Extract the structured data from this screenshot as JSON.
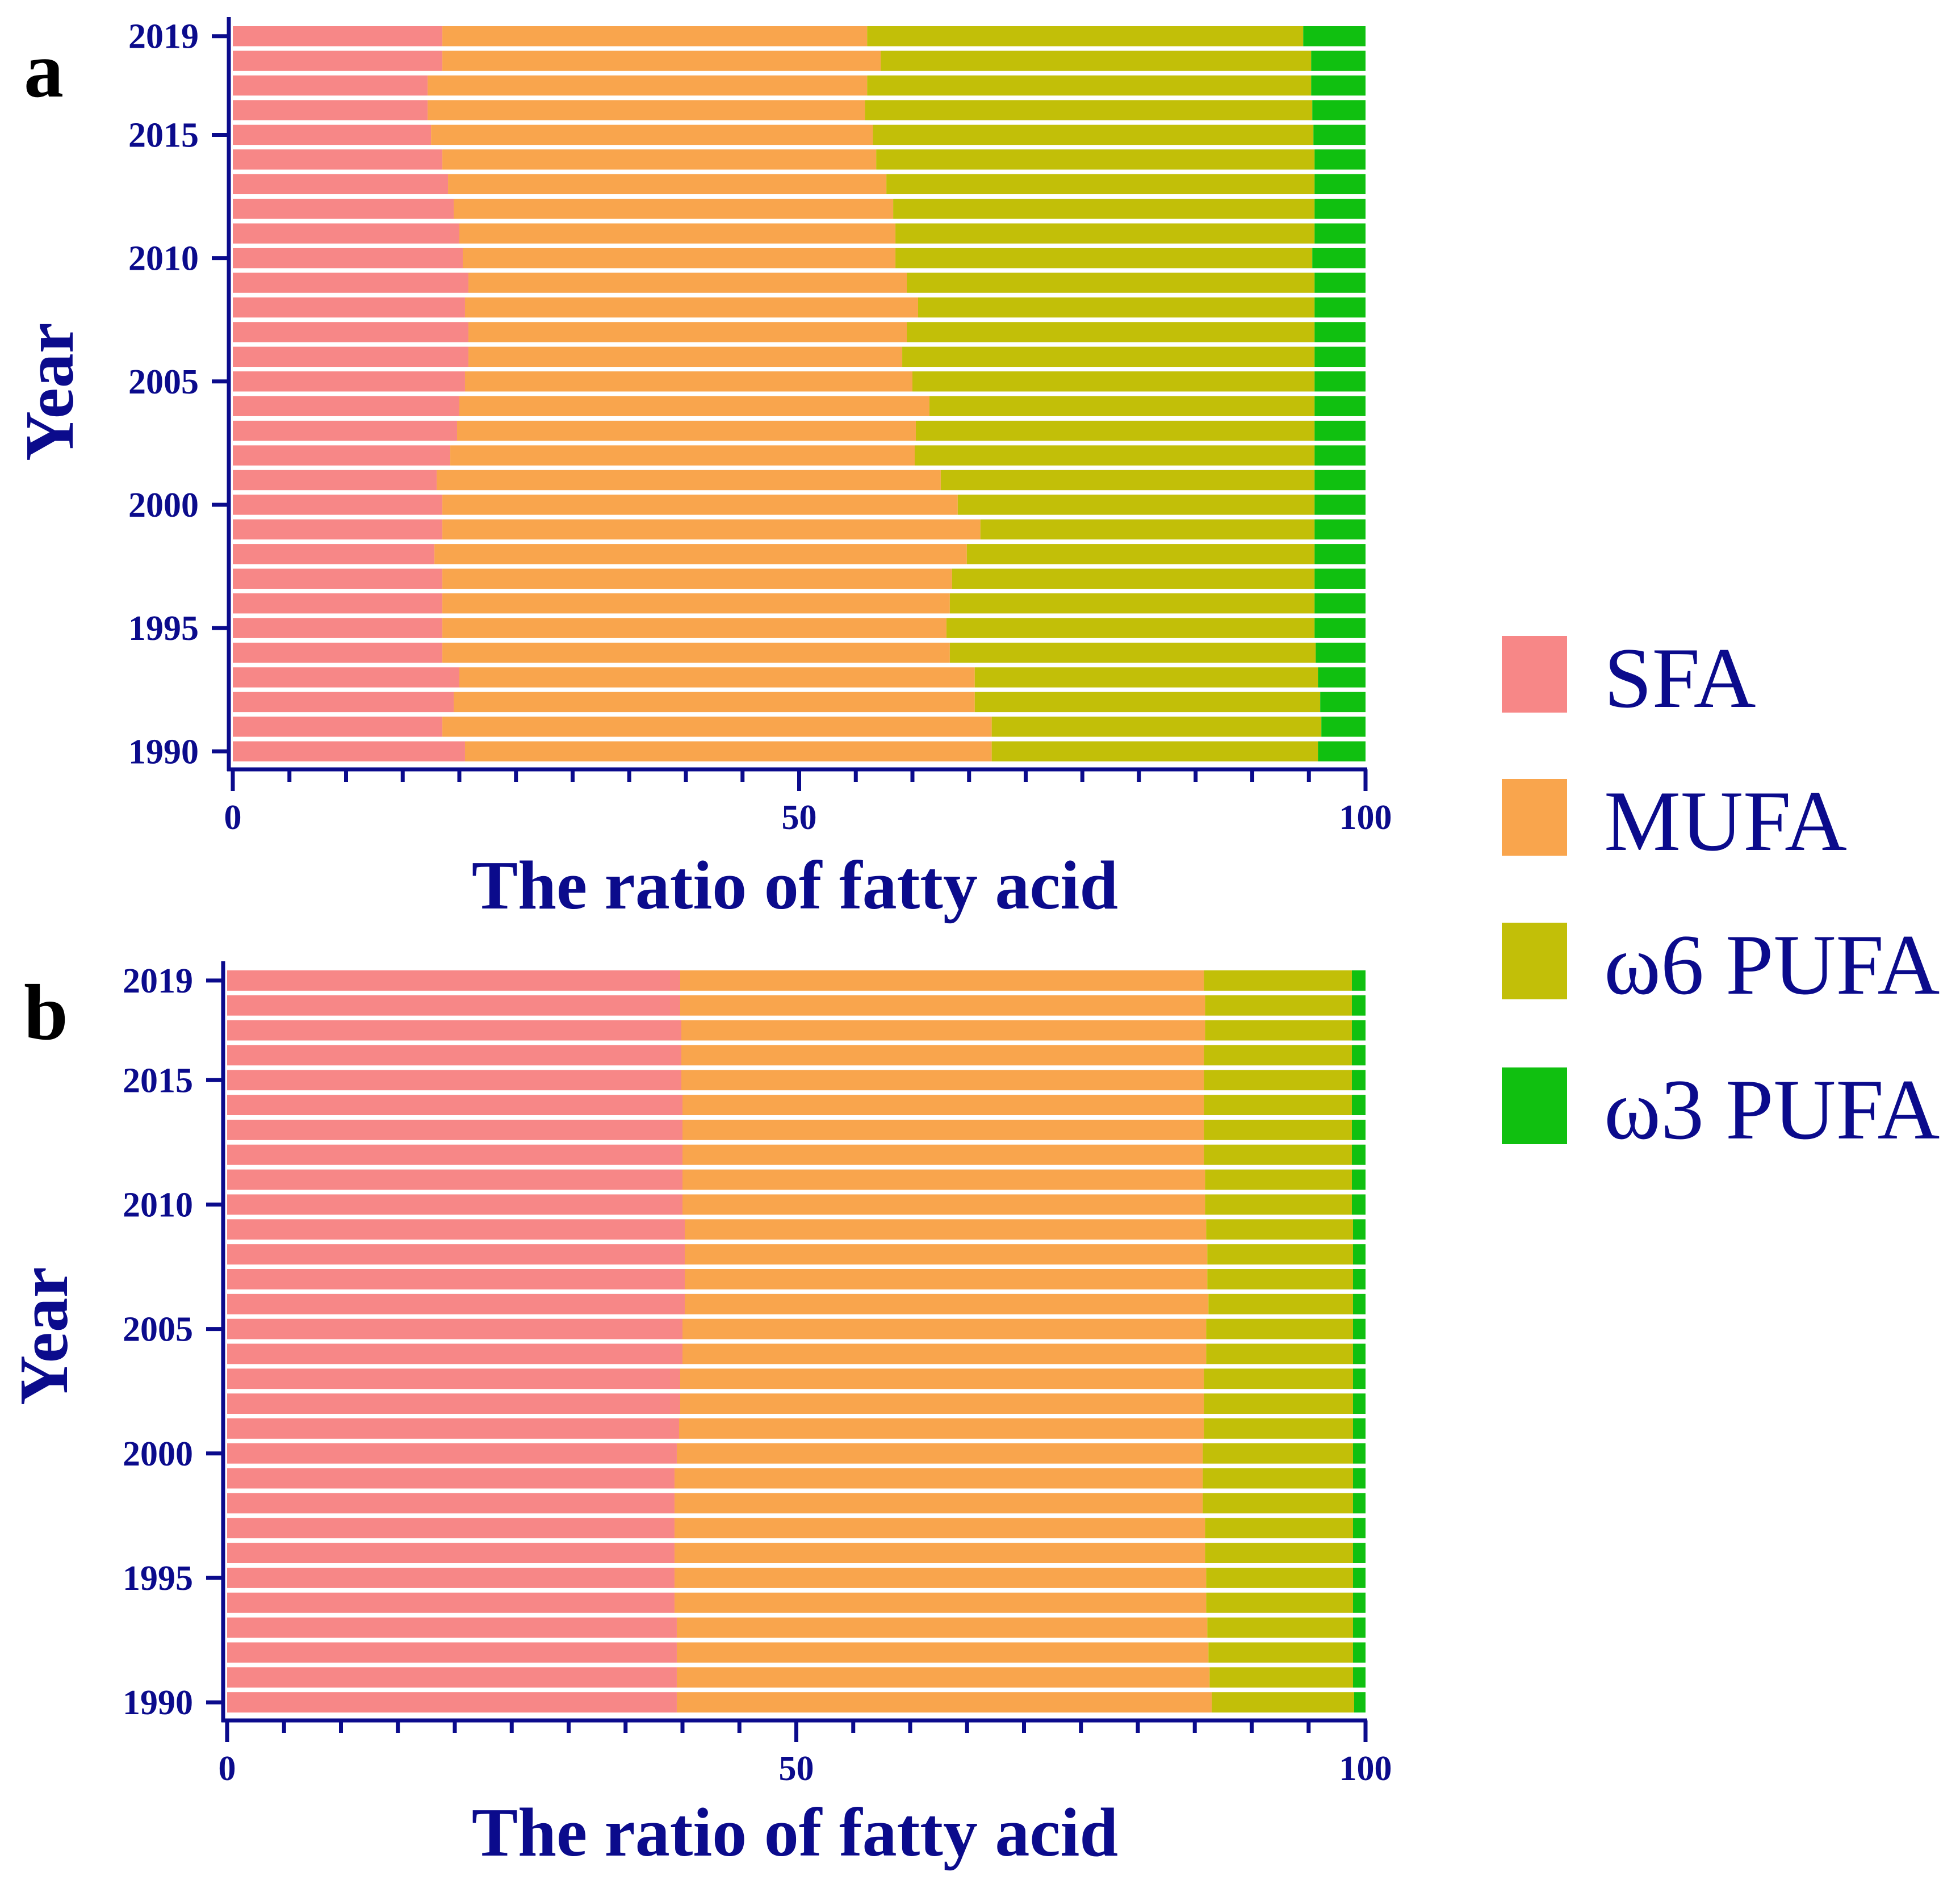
{
  "legend": {
    "items": [
      {
        "label": "SFA",
        "color": "#f78787"
      },
      {
        "label": "MUFA",
        "color": "#f9a54d"
      },
      {
        "label": "ω6 PUFA",
        "color": "#c2bf08"
      },
      {
        "label": "ω3 PUFA",
        "color": "#10c010"
      }
    ]
  },
  "chart_data": [
    {
      "panel": "a",
      "type": "bar",
      "orientation": "horizontal",
      "stacked": true,
      "xlabel": "The ratio of fatty acid",
      "ylabel": "Year",
      "xlim": [
        0,
        100
      ],
      "x_ticks": [
        "0",
        "50",
        "100"
      ],
      "y_ticks": [
        "1990",
        "1995",
        "2000",
        "2005",
        "2010",
        "2015",
        "2019"
      ],
      "categories": [
        1990,
        1991,
        1992,
        1993,
        1994,
        1995,
        1996,
        1997,
        1998,
        1999,
        2000,
        2001,
        2002,
        2003,
        2004,
        2005,
        2006,
        2007,
        2008,
        2009,
        2010,
        2011,
        2012,
        2013,
        2014,
        2015,
        2016,
        2017,
        2018,
        2019
      ],
      "series": [
        {
          "name": "SFA",
          "values": [
            20.5,
            18.5,
            19.5,
            20.0,
            18.5,
            18.5,
            18.5,
            18.5,
            17.8,
            18.5,
            18.5,
            18.0,
            19.2,
            19.8,
            20.0,
            20.5,
            20.8,
            20.8,
            20.5,
            20.8,
            20.3,
            20.0,
            19.5,
            19.0,
            18.5,
            17.5,
            17.2,
            17.2,
            18.5,
            18.5
          ],
          "color": "#f78787"
        },
        {
          "name": "MUFA",
          "values": [
            46.5,
            48.5,
            46.0,
            45.5,
            44.8,
            44.5,
            44.8,
            45.0,
            47.0,
            47.5,
            45.5,
            44.5,
            41.0,
            40.5,
            41.5,
            39.5,
            38.3,
            38.7,
            40.0,
            38.7,
            38.2,
            38.5,
            38.8,
            38.7,
            38.3,
            39.0,
            38.6,
            38.8,
            38.7,
            37.5
          ],
          "color": "#f9a54d"
        },
        {
          "name": "ω6 PUFA",
          "values": [
            28.8,
            29.1,
            30.5,
            30.3,
            32.3,
            32.5,
            32.2,
            32.0,
            30.7,
            29.5,
            31.5,
            33.0,
            35.3,
            35.2,
            34.0,
            35.5,
            36.4,
            36.0,
            35.0,
            36.0,
            36.8,
            37.0,
            37.2,
            37.8,
            38.7,
            38.9,
            39.5,
            39.2,
            38.0,
            38.5
          ],
          "color": "#c2bf08"
        },
        {
          "name": "ω3 PUFA",
          "values": [
            4.2,
            3.9,
            4.0,
            4.2,
            4.4,
            4.5,
            4.5,
            4.5,
            4.5,
            4.5,
            4.5,
            4.5,
            4.5,
            4.5,
            4.5,
            4.5,
            4.5,
            4.5,
            4.5,
            4.5,
            4.7,
            4.5,
            4.5,
            4.5,
            4.5,
            4.6,
            4.7,
            4.8,
            4.8,
            5.5
          ],
          "color": "#10c010"
        }
      ]
    },
    {
      "panel": "b",
      "type": "bar",
      "orientation": "horizontal",
      "stacked": true,
      "xlabel": "The ratio of fatty acid",
      "ylabel": "Year",
      "xlim": [
        0,
        100
      ],
      "x_ticks": [
        "0",
        "50",
        "100"
      ],
      "y_ticks": [
        "1990",
        "1995",
        "2000",
        "2005",
        "2010",
        "2015",
        "2019"
      ],
      "categories": [
        1990,
        1991,
        1992,
        1993,
        1994,
        1995,
        1996,
        1997,
        1998,
        1999,
        2000,
        2001,
        2002,
        2003,
        2004,
        2005,
        2006,
        2007,
        2008,
        2009,
        2010,
        2011,
        2012,
        2013,
        2014,
        2015,
        2016,
        2017,
        2018,
        2019
      ],
      "series": [
        {
          "name": "SFA",
          "values": [
            39.5,
            39.5,
            39.5,
            39.5,
            39.3,
            39.3,
            39.3,
            39.3,
            39.3,
            39.3,
            39.5,
            39.7,
            39.8,
            39.8,
            40.0,
            40.0,
            40.2,
            40.2,
            40.2,
            40.2,
            40.0,
            40.0,
            40.0,
            40.0,
            40.0,
            39.9,
            39.9,
            39.9,
            39.8,
            39.8
          ],
          "color": "#f78787"
        },
        {
          "name": "MUFA",
          "values": [
            47.0,
            46.8,
            46.7,
            46.6,
            46.7,
            46.7,
            46.6,
            46.6,
            46.4,
            46.4,
            46.2,
            46.1,
            46.0,
            46.0,
            46.0,
            46.0,
            46.0,
            45.9,
            45.9,
            45.8,
            45.9,
            45.9,
            45.8,
            45.8,
            45.8,
            45.9,
            45.9,
            46.0,
            46.1,
            46.0
          ],
          "color": "#f9a54d"
        },
        {
          "name": "ω6 PUFA",
          "values": [
            12.5,
            12.6,
            12.7,
            12.8,
            12.9,
            12.9,
            13.0,
            13.0,
            13.2,
            13.2,
            13.2,
            13.1,
            13.1,
            13.1,
            12.9,
            12.9,
            12.7,
            12.8,
            12.8,
            12.9,
            12.9,
            12.9,
            13.0,
            13.0,
            13.0,
            13.0,
            13.0,
            12.9,
            12.9,
            13.0
          ],
          "color": "#c2bf08"
        },
        {
          "name": "ω3 PUFA",
          "values": [
            1.0,
            1.1,
            1.1,
            1.1,
            1.1,
            1.1,
            1.1,
            1.1,
            1.1,
            1.1,
            1.1,
            1.1,
            1.1,
            1.1,
            1.1,
            1.1,
            1.1,
            1.1,
            1.1,
            1.1,
            1.2,
            1.2,
            1.2,
            1.2,
            1.2,
            1.2,
            1.2,
            1.2,
            1.2,
            1.2
          ],
          "color": "#10c010"
        }
      ]
    }
  ]
}
